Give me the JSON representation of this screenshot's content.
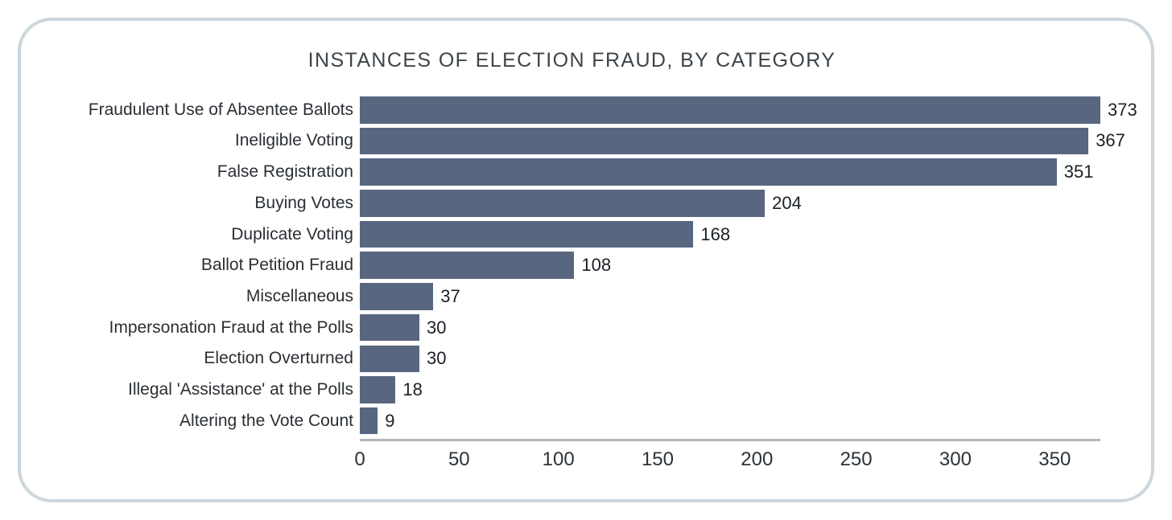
{
  "chart_data": {
    "type": "bar",
    "orientation": "horizontal",
    "title": "INSTANCES OF ELECTION FRAUD, BY CATEGORY",
    "categories": [
      "Fraudulent Use of Absentee Ballots",
      "Ineligible Voting",
      "False Registration",
      "Buying Votes",
      "Duplicate Voting",
      "Ballot Petition Fraud",
      "Miscellaneous",
      "Impersonation Fraud at the Polls",
      "Election Overturned",
      "Illegal 'Assistance' at the Polls",
      "Altering the Vote Count"
    ],
    "values": [
      373,
      367,
      351,
      204,
      168,
      108,
      37,
      30,
      30,
      18,
      9
    ],
    "xlabel": "",
    "ylabel": "",
    "xlim": [
      0,
      373
    ],
    "xticks": [
      0,
      50,
      100,
      150,
      200,
      250,
      300,
      350
    ],
    "grid": false,
    "legend": false,
    "value_labels": true,
    "bar_color": "#586680",
    "axis_color": "#b4b7ba"
  }
}
